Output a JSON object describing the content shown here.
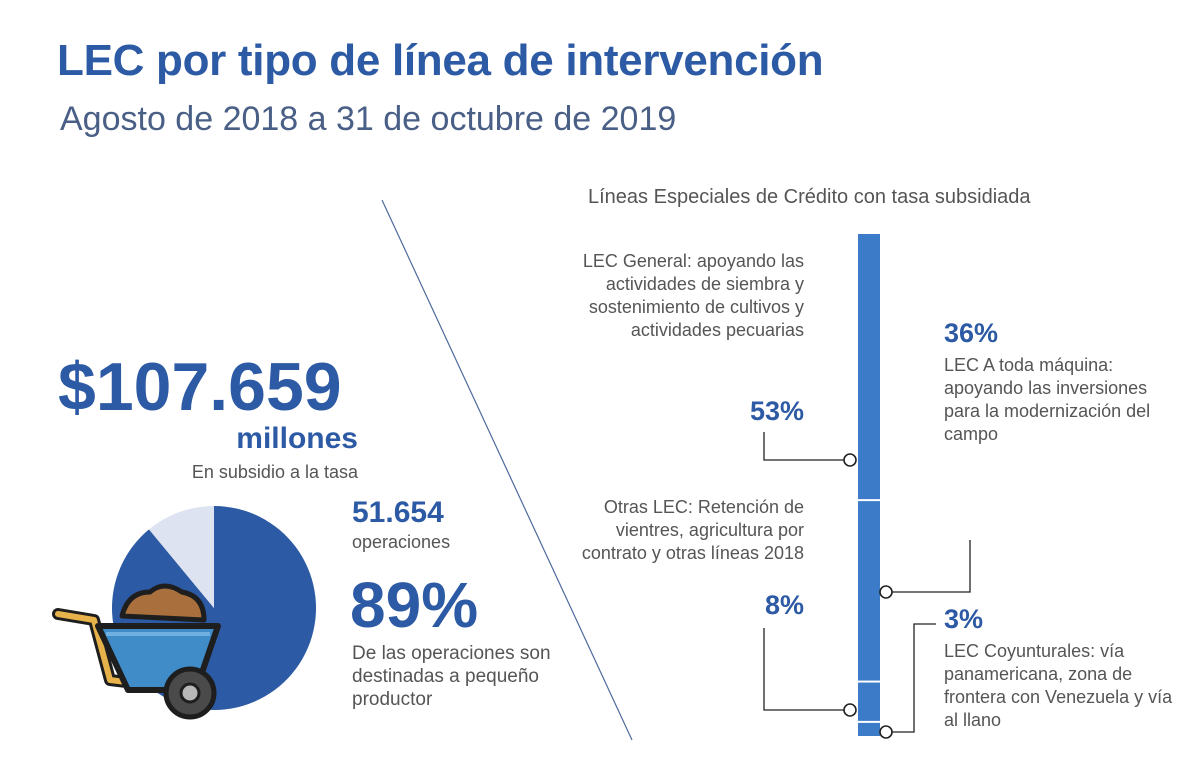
{
  "header": {
    "title": "LEC por tipo de línea de intervención",
    "subtitle": "Agosto de 2018 a 31 de octubre de 2019"
  },
  "summary": {
    "amount": "$107.659",
    "amount_unit": "millones",
    "amount_desc": "En subsidio a la tasa",
    "operations_count": "51.654",
    "operations_label": "operaciones",
    "small_producer_pct": "89%",
    "small_producer_desc": "De las operaciones son destinadas a pequeño productor",
    "small_producer_share": 89
  },
  "lines": {
    "heading": "Líneas Especiales de Crédito con tasa subsidiada",
    "items": [
      {
        "key": "general",
        "pct": "53%",
        "share": 53,
        "text": "LEC General: apoyando las actividades de siembra y sostenimiento de cultivos y actividades pecuarias"
      },
      {
        "key": "maquina",
        "pct": "36%",
        "share": 36,
        "text": "LEC A toda máquina: apoyando las inversiones para la modernización del campo"
      },
      {
        "key": "otras",
        "pct": "8%",
        "share": 8,
        "text": "Otras LEC: Retención de vientres, agricultura por contrato y otras líneas 2018"
      },
      {
        "key": "coyuntural",
        "pct": "3%",
        "share": 3,
        "text": "LEC Coyunturales: vía panamericana, zona de frontera con Venezuela y vía al llano"
      }
    ]
  },
  "colors": {
    "primary": "#2d5aa4",
    "bar": "#3c7bc8",
    "pie_light": "#dde3f0",
    "barrow_tub": "#3f8cc9",
    "barrow_handle": "#e8b24a",
    "soil": "#a9703d"
  },
  "icons": {
    "wheelbarrow": "wheelbarrow-icon"
  }
}
